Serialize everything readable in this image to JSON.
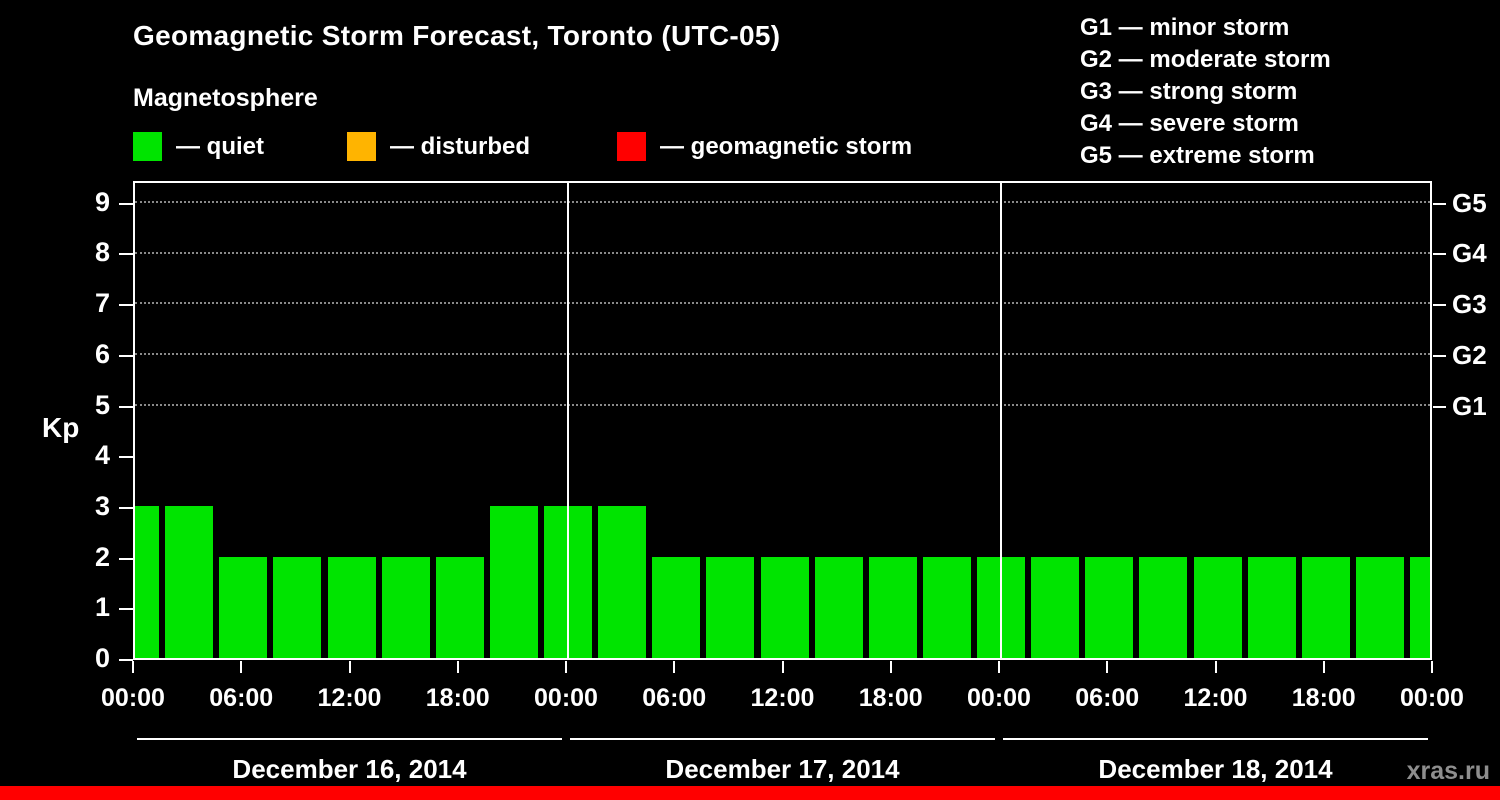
{
  "title": "Geomagnetic Storm Forecast, Toronto (UTC-05)",
  "subtitle": "Magnetosphere",
  "watermark": "xras.ru",
  "legend": [
    {
      "name": "quiet",
      "label": "— quiet",
      "color": "#00e400"
    },
    {
      "name": "disturbed",
      "label": "— disturbed",
      "color": "#ffb400"
    },
    {
      "name": "geomagnetic-storm",
      "label": "— geomagnetic storm",
      "color": "#ff0000"
    }
  ],
  "g_legend": [
    "G1 — minor storm",
    "G2 — moderate storm",
    "G3 — strong storm",
    "G4 — severe storm",
    "G5 — extreme storm"
  ],
  "chart_data": {
    "type": "bar",
    "title": "Geomagnetic Storm Forecast, Toronto (UTC-05)",
    "ylabel": "Kp",
    "ylim": [
      0,
      9.45
    ],
    "y_ticks": [
      0,
      1,
      2,
      3,
      4,
      5,
      6,
      7,
      8,
      9
    ],
    "grid_levels": [
      5,
      6,
      7,
      8,
      9
    ],
    "right_axis": [
      {
        "kp": 5,
        "label": "G1"
      },
      {
        "kp": 6,
        "label": "G2"
      },
      {
        "kp": 7,
        "label": "G3"
      },
      {
        "kp": 8,
        "label": "G4"
      },
      {
        "kp": 9,
        "label": "G5"
      }
    ],
    "interval_hours": 3,
    "x_tick_labels": [
      "00:00",
      "06:00",
      "12:00",
      "18:00",
      "00:00",
      "06:00",
      "12:00",
      "18:00",
      "00:00",
      "06:00",
      "12:00",
      "18:00",
      "00:00"
    ],
    "days": [
      "December 16, 2014",
      "December 17, 2014",
      "December 18, 2014"
    ],
    "values": [
      3,
      3,
      2,
      2,
      2,
      2,
      2,
      3,
      3,
      3,
      2,
      2,
      2,
      2,
      2,
      2,
      2,
      2,
      2,
      2,
      2,
      2,
      2,
      2,
      2
    ],
    "bar_color": "#00e400",
    "legend_position": "top",
    "grid": "dotted horizontal at G-levels only"
  }
}
